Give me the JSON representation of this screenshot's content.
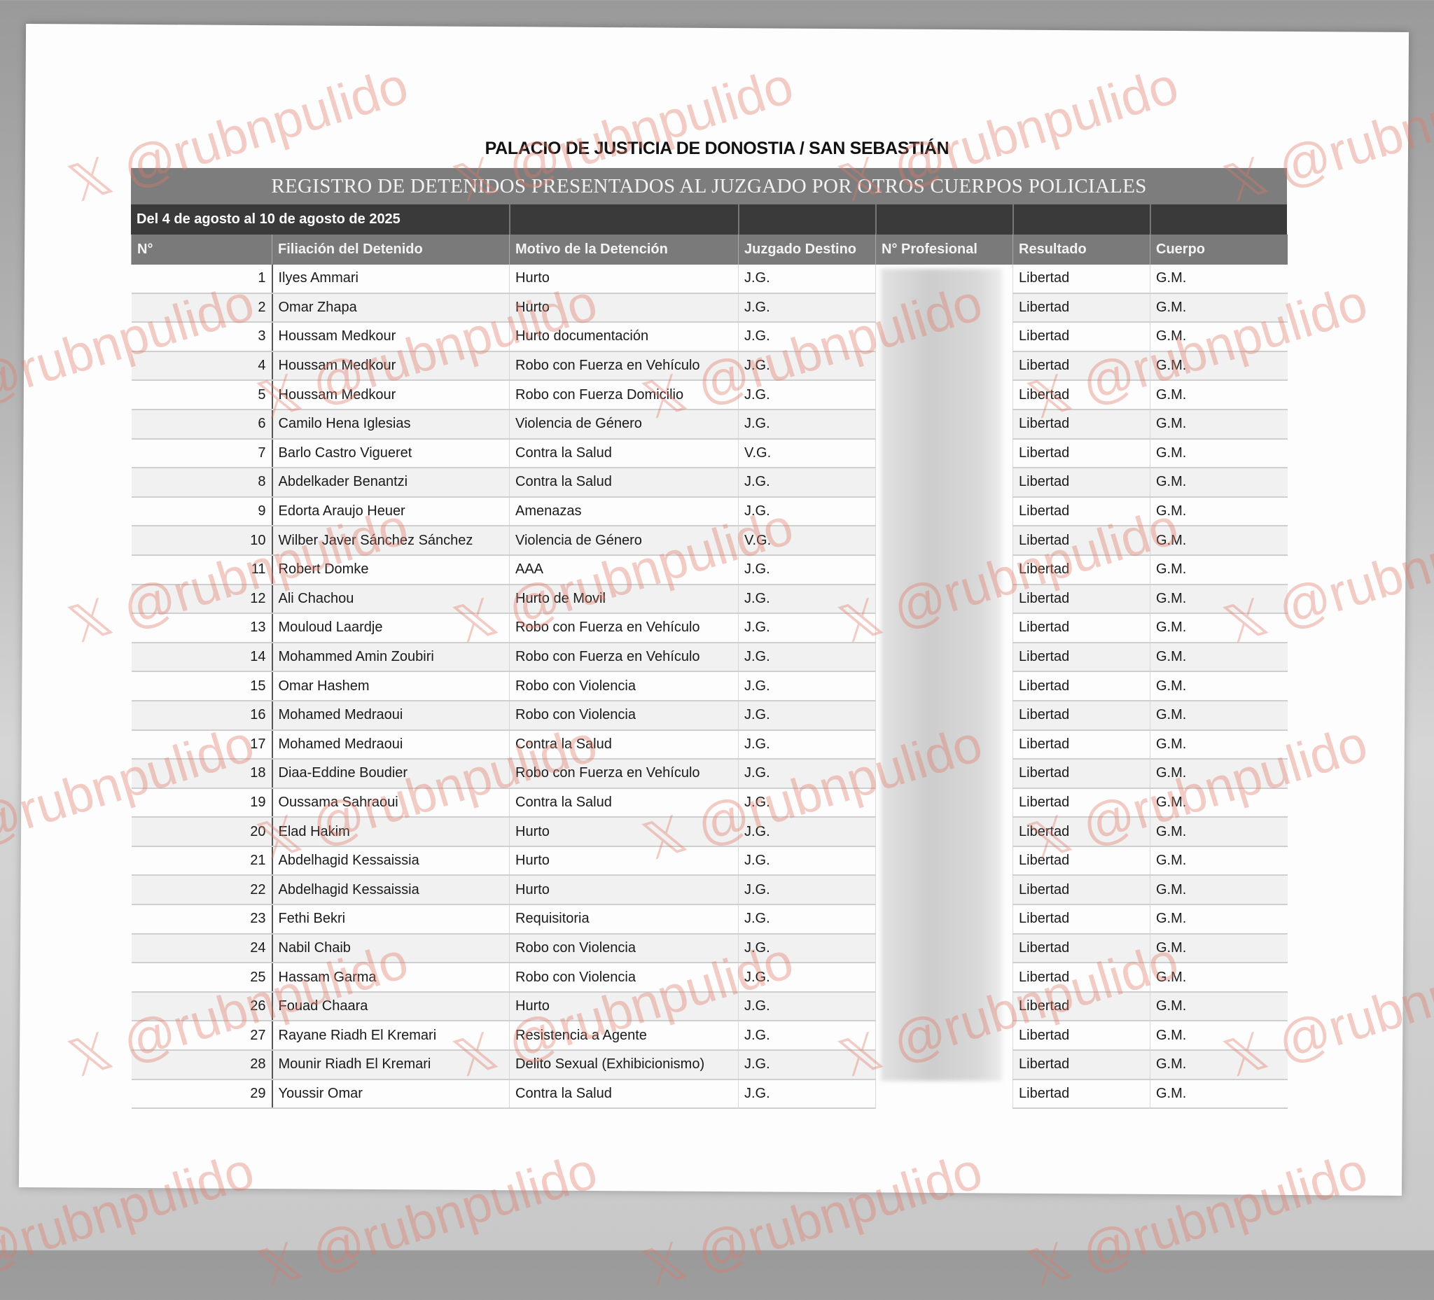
{
  "document": {
    "title": "PALACIO DE JUSTICIA DE DONOSTIA / SAN SEBASTIÁN",
    "subtitle": "REGISTRO DE DETENIDOS PRESENTADOS AL JUZGADO POR OTROS CUERPOS POLICIALES",
    "date_range": "Del 4 de agosto al 10 de agosto de 2025"
  },
  "table": {
    "headers": [
      "N°",
      "Filiación del Detenido",
      "Motivo de la Detención",
      "Juzgado Destino",
      "N° Profesional",
      "Resultado",
      "Cuerpo"
    ],
    "rows": [
      {
        "n": "1",
        "name": "Ilyes Ammari",
        "motivo": "Hurto",
        "juzgado": "J.G.",
        "resultado": "Libertad",
        "cuerpo": "G.M."
      },
      {
        "n": "2",
        "name": "Omar Zhapa",
        "motivo": "Hurto",
        "juzgado": "J.G.",
        "resultado": "Libertad",
        "cuerpo": "G.M."
      },
      {
        "n": "3",
        "name": "Houssam Medkour",
        "motivo": "Hurto documentación",
        "juzgado": "J.G.",
        "resultado": "Libertad",
        "cuerpo": "G.M."
      },
      {
        "n": "4",
        "name": "Houssam Medkour",
        "motivo": "Robo con Fuerza en Vehículo",
        "juzgado": "J.G.",
        "resultado": "Libertad",
        "cuerpo": "G.M."
      },
      {
        "n": "5",
        "name": "Houssam Medkour",
        "motivo": "Robo con Fuerza Domicilio",
        "juzgado": "J.G.",
        "resultado": "Libertad",
        "cuerpo": "G.M."
      },
      {
        "n": "6",
        "name": "Camilo Hena Iglesias",
        "motivo": "Violencia de Género",
        "juzgado": "J.G.",
        "resultado": "Libertad",
        "cuerpo": "G.M."
      },
      {
        "n": "7",
        "name": "Barlo Castro Vigueret",
        "motivo": "Contra la Salud",
        "juzgado": "V.G.",
        "resultado": "Libertad",
        "cuerpo": "G.M."
      },
      {
        "n": "8",
        "name": "Abdelkader Benantzi",
        "motivo": "Contra la Salud",
        "juzgado": "J.G.",
        "resultado": "Libertad",
        "cuerpo": "G.M."
      },
      {
        "n": "9",
        "name": "Edorta Araujo Heuer",
        "motivo": "Amenazas",
        "juzgado": "J.G.",
        "resultado": "Libertad",
        "cuerpo": "G.M."
      },
      {
        "n": "10",
        "name": "Wilber Javer Sánchez Sánchez",
        "motivo": "Violencia de Género",
        "juzgado": "V.G.",
        "resultado": "Libertad",
        "cuerpo": "G.M."
      },
      {
        "n": "11",
        "name": "Robert Domke",
        "motivo": "AAA",
        "juzgado": "J.G.",
        "resultado": "Libertad",
        "cuerpo": "G.M."
      },
      {
        "n": "12",
        "name": "Ali Chachou",
        "motivo": "Hurto de Movil",
        "juzgado": "J.G.",
        "resultado": "Libertad",
        "cuerpo": "G.M."
      },
      {
        "n": "13",
        "name": "Mouloud Laardje",
        "motivo": "Robo con Fuerza en Vehículo",
        "juzgado": "J.G.",
        "resultado": "Libertad",
        "cuerpo": "G.M."
      },
      {
        "n": "14",
        "name": "Mohammed Amin Zoubiri",
        "motivo": "Robo con Fuerza en Vehículo",
        "juzgado": "J.G.",
        "resultado": "Libertad",
        "cuerpo": "G.M."
      },
      {
        "n": "15",
        "name": "Omar Hashem",
        "motivo": "Robo con Violencia",
        "juzgado": "J.G.",
        "resultado": "Libertad",
        "cuerpo": "G.M."
      },
      {
        "n": "16",
        "name": "Mohamed Medraoui",
        "motivo": "Robo con Violencia",
        "juzgado": "J.G.",
        "resultado": "Libertad",
        "cuerpo": "G.M."
      },
      {
        "n": "17",
        "name": "Mohamed Medraoui",
        "motivo": "Contra la Salud",
        "juzgado": "J.G.",
        "resultado": "Libertad",
        "cuerpo": "G.M."
      },
      {
        "n": "18",
        "name": "Diaa-Eddine Boudier",
        "motivo": "Robo con Fuerza en Vehículo",
        "juzgado": "J.G.",
        "resultado": "Libertad",
        "cuerpo": "G.M."
      },
      {
        "n": "19",
        "name": "Oussama Sahraoui",
        "motivo": "Contra la Salud",
        "juzgado": "J.G.",
        "resultado": "Libertad",
        "cuerpo": "G.M."
      },
      {
        "n": "20",
        "name": "Elad Hakim",
        "motivo": "Hurto",
        "juzgado": "J.G.",
        "resultado": "Libertad",
        "cuerpo": "G.M."
      },
      {
        "n": "21",
        "name": "Abdelhagid Kessaissia",
        "motivo": "Hurto",
        "juzgado": "J.G.",
        "resultado": "Libertad",
        "cuerpo": "G.M."
      },
      {
        "n": "22",
        "name": "Abdelhagid Kessaissia",
        "motivo": "Hurto",
        "juzgado": "J.G.",
        "resultado": "Libertad",
        "cuerpo": "G.M."
      },
      {
        "n": "23",
        "name": "Fethi Bekri",
        "motivo": "Requisitoria",
        "juzgado": "J.G.",
        "resultado": "Libertad",
        "cuerpo": "G.M."
      },
      {
        "n": "24",
        "name": "Nabil Chaib",
        "motivo": "Robo con Violencia",
        "juzgado": "J.G.",
        "resultado": "Libertad",
        "cuerpo": "G.M."
      },
      {
        "n": "25",
        "name": "Hassam Garma",
        "motivo": "Robo con Violencia",
        "juzgado": "J.G.",
        "resultado": "Libertad",
        "cuerpo": "G.M."
      },
      {
        "n": "26",
        "name": "Fouad Chaara",
        "motivo": "Hurto",
        "juzgado": "J.G.",
        "resultado": "Libertad",
        "cuerpo": "G.M."
      },
      {
        "n": "27",
        "name": "Rayane Riadh El Kremari",
        "motivo": "Resistencia a Agente",
        "juzgado": "J.G.",
        "resultado": "Libertad",
        "cuerpo": "G.M."
      },
      {
        "n": "28",
        "name": "Mounir Riadh El Kremari",
        "motivo": "Delito Sexual (Exhibicionismo)",
        "juzgado": "J.G.",
        "resultado": "Libertad",
        "cuerpo": "G.M."
      },
      {
        "n": "29",
        "name": "Youssir Omar",
        "motivo": "Contra la Salud",
        "juzgado": "J.G.",
        "resultado": "Libertad",
        "cuerpo": "G.M."
      }
    ]
  },
  "watermark": {
    "text": "𝕏 @rubnpulido",
    "color": "#e17869"
  }
}
